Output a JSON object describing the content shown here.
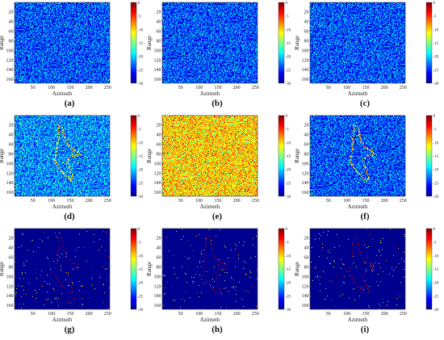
{
  "figure": {
    "colorscale": [
      "#00008f",
      "#0000ff",
      "#0080ff",
      "#00ffff",
      "#80ff80",
      "#ffff00",
      "#ff8000",
      "#ff0000",
      "#800000"
    ],
    "chart_data": [
      {
        "type": "heatmap",
        "caption": "(a)",
        "xlabel": "Azimuth",
        "ylabel": "Range",
        "xticks": [
          50,
          100,
          150,
          200,
          250
        ],
        "yticks": [
          20,
          40,
          60,
          80,
          100,
          120,
          140,
          160
        ],
        "xlim": [
          1,
          256
        ],
        "ylim": [
          1,
          168
        ],
        "colorbar_ticks": [
          0,
          -5,
          -10,
          -15,
          -20,
          -25,
          -30
        ],
        "clim": [
          -30,
          0
        ],
        "background_mean_db": -24,
        "target": "none"
      },
      {
        "type": "heatmap",
        "caption": "(b)",
        "xlabel": "Azimuth",
        "ylabel": "Range",
        "xticks": [
          50,
          100,
          150,
          200,
          250
        ],
        "yticks": [
          20,
          40,
          60,
          80,
          100,
          120,
          140,
          160
        ],
        "xlim": [
          1,
          256
        ],
        "ylim": [
          1,
          168
        ],
        "colorbar_ticks": [
          0,
          -5,
          -10,
          -15,
          -20,
          -25,
          -30
        ],
        "clim": [
          -30,
          0
        ],
        "background_mean_db": -24,
        "target": "none"
      },
      {
        "type": "heatmap",
        "caption": "(c)",
        "xlabel": "Azimuth",
        "ylabel": "Range",
        "xticks": [
          50,
          100,
          150,
          200,
          250
        ],
        "yticks": [
          20,
          40,
          60,
          80,
          100,
          120,
          140,
          160
        ],
        "xlim": [
          1,
          256
        ],
        "ylim": [
          1,
          168
        ],
        "colorbar_ticks": [
          0,
          -5,
          -10,
          -15,
          -20,
          -25,
          -30
        ],
        "clim": [
          -30,
          0
        ],
        "background_mean_db": -24,
        "target": "none"
      },
      {
        "type": "heatmap",
        "caption": "(d)",
        "xlabel": "Azimuth",
        "ylabel": "Range",
        "xticks": [
          50,
          100,
          150,
          200,
          250
        ],
        "yticks": [
          20,
          40,
          60,
          80,
          100,
          120,
          140,
          160
        ],
        "xlim": [
          1,
          256
        ],
        "ylim": [
          1,
          168
        ],
        "colorbar_ticks": [
          0,
          -5,
          -10,
          -15,
          -20,
          -25,
          -30
        ],
        "clim": [
          -30,
          0
        ],
        "background_mean_db": -22,
        "target": "aircraft-outline"
      },
      {
        "type": "heatmap",
        "caption": "(e)",
        "xlabel": "Azimuth",
        "ylabel": "Range",
        "xticks": [
          50,
          100,
          150,
          200,
          250
        ],
        "yticks": [
          20,
          40,
          60,
          80,
          100,
          120,
          140,
          160
        ],
        "xlim": [
          1,
          256
        ],
        "ylim": [
          1,
          168
        ],
        "colorbar_ticks": [
          0,
          -5,
          -10,
          -15,
          -20,
          -25,
          -30
        ],
        "clim": [
          -30,
          0
        ],
        "background_mean_db": -10,
        "target": "none"
      },
      {
        "type": "heatmap",
        "caption": "(f)",
        "xlabel": "Azimuth",
        "ylabel": "Range",
        "xticks": [
          50,
          100,
          150,
          200,
          250
        ],
        "yticks": [
          20,
          40,
          60,
          80,
          100,
          120,
          140,
          160
        ],
        "xlim": [
          1,
          256
        ],
        "ylim": [
          1,
          168
        ],
        "colorbar_ticks": [
          0,
          -5,
          -10,
          -15,
          -20,
          -25,
          -30
        ],
        "clim": [
          -30,
          0
        ],
        "background_mean_db": -24,
        "target": "aircraft-outline"
      },
      {
        "type": "heatmap",
        "caption": "(g)",
        "xlabel": "Azimuth",
        "ylabel": "Range",
        "xticks": [
          50,
          100,
          150,
          200,
          250
        ],
        "yticks": [
          20,
          40,
          60,
          80,
          100,
          120,
          140,
          160
        ],
        "xlim": [
          1,
          256
        ],
        "ylim": [
          1,
          168
        ],
        "colorbar_ticks": [
          0,
          -5,
          -10,
          -15,
          -20,
          -25,
          -30
        ],
        "clim": [
          -30,
          0
        ],
        "background_mean_db": -30,
        "target": "aircraft-outline-sparse"
      },
      {
        "type": "heatmap",
        "caption": "(h)",
        "xlabel": "Azimuth",
        "ylabel": "Range",
        "xticks": [
          50,
          100,
          150,
          200,
          250
        ],
        "yticks": [
          20,
          40,
          60,
          80,
          100,
          120,
          140,
          160
        ],
        "xlim": [
          1,
          256
        ],
        "ylim": [
          1,
          168
        ],
        "colorbar_ticks": [
          0,
          -5,
          -10,
          -15,
          -20,
          -25,
          -30
        ],
        "clim": [
          -30,
          0
        ],
        "background_mean_db": -30,
        "target": "aircraft-outline-sparse"
      },
      {
        "type": "heatmap",
        "caption": "(i)",
        "xlabel": "Azimuth",
        "ylabel": "Range",
        "xticks": [
          50,
          100,
          150,
          200,
          250
        ],
        "yticks": [
          20,
          40,
          60,
          80,
          100,
          120,
          140,
          160
        ],
        "xlim": [
          1,
          256
        ],
        "ylim": [
          1,
          168
        ],
        "colorbar_ticks": [
          0,
          -5,
          -10,
          -15,
          -20,
          -25,
          -30
        ],
        "clim": [
          -30,
          0
        ],
        "background_mean_db": -30,
        "target": "aircraft-outline-sparse"
      }
    ]
  }
}
